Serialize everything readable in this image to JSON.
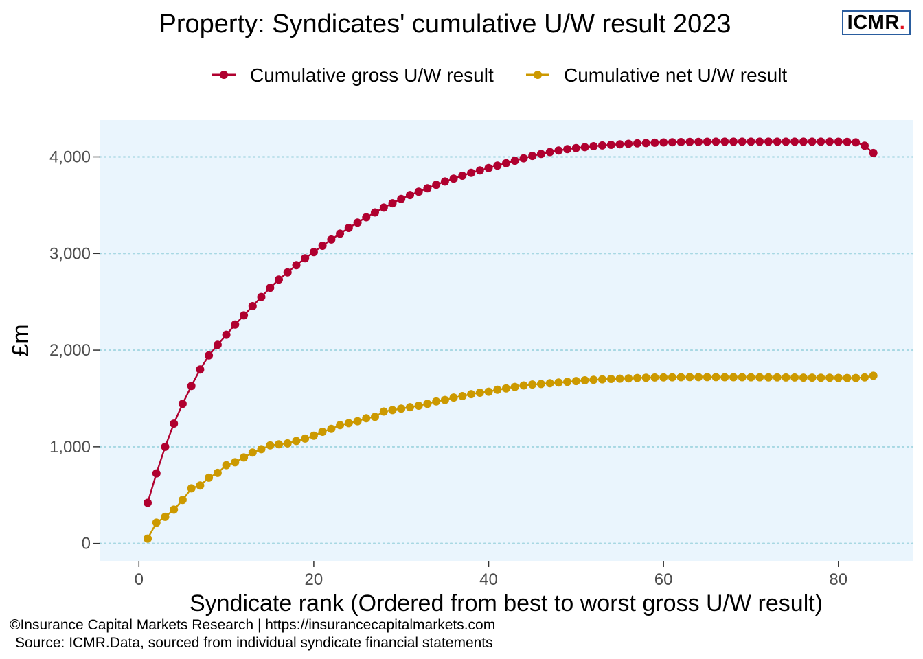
{
  "logo": {
    "text": "ICMR",
    "dot": "."
  },
  "caption": {
    "line1": "©Insurance Capital Markets Research | https://insurancecapitalmarkets.com",
    "line2": "Source: ICMR.Data, sourced from individual syndicate financial statements"
  },
  "colors": {
    "gross": "#b0002f",
    "net": "#cc9900",
    "panel": "#eaf5fd",
    "grid": "#a8d8e3"
  },
  "chart_data": {
    "type": "line",
    "title": "Property: Syndicates' cumulative  U/W result 2023",
    "xlabel": "Syndicate rank (Ordered from best to worst gross U/W result)",
    "ylabel": "£m",
    "xlim": [
      -4.5,
      88.5
    ],
    "ylim": [
      -180,
      4380
    ],
    "xticks": [
      0,
      20,
      40,
      60,
      80
    ],
    "xtick_labels": [
      "0",
      "20",
      "40",
      "60",
      "80"
    ],
    "yticks": [
      0,
      1000,
      2000,
      3000,
      4000
    ],
    "ytick_labels": [
      "0",
      "1,000",
      "2,000",
      "3,000",
      "4,000"
    ],
    "grid": "horizontal dotted",
    "legend_position": "top",
    "series": [
      {
        "name": "Cumulative gross U/W result",
        "color": "#b0002f",
        "x": [
          1,
          2,
          3,
          4,
          5,
          6,
          7,
          8,
          9,
          10,
          11,
          12,
          13,
          14,
          15,
          16,
          17,
          18,
          19,
          20,
          21,
          22,
          23,
          24,
          25,
          26,
          27,
          28,
          29,
          30,
          31,
          32,
          33,
          34,
          35,
          36,
          37,
          38,
          39,
          40,
          41,
          42,
          43,
          44,
          45,
          46,
          47,
          48,
          49,
          50,
          51,
          52,
          53,
          54,
          55,
          56,
          57,
          58,
          59,
          60,
          61,
          62,
          63,
          64,
          65,
          66,
          67,
          68,
          69,
          70,
          71,
          72,
          73,
          74,
          75,
          76,
          77,
          78,
          79,
          80,
          81,
          82,
          83,
          84
        ],
        "values": [
          420,
          725,
          1000,
          1240,
          1445,
          1630,
          1800,
          1945,
          2055,
          2160,
          2265,
          2360,
          2455,
          2550,
          2645,
          2730,
          2805,
          2880,
          2950,
          3015,
          3080,
          3145,
          3205,
          3265,
          3320,
          3375,
          3425,
          3475,
          3520,
          3565,
          3605,
          3640,
          3675,
          3710,
          3745,
          3775,
          3805,
          3835,
          3860,
          3885,
          3910,
          3935,
          3960,
          3985,
          4010,
          4030,
          4050,
          4065,
          4080,
          4090,
          4100,
          4110,
          4118,
          4124,
          4130,
          4135,
          4140,
          4143,
          4146,
          4149,
          4151,
          4153,
          4154,
          4155,
          4156,
          4157,
          4157,
          4157,
          4157,
          4157,
          4157,
          4157,
          4157,
          4157,
          4157,
          4157,
          4157,
          4157,
          4157,
          4156,
          4155,
          4150,
          4115,
          4040
        ]
      },
      {
        "name": "Cumulative net U/W result",
        "color": "#cc9900",
        "x": [
          1,
          2,
          3,
          4,
          5,
          6,
          7,
          8,
          9,
          10,
          11,
          12,
          13,
          14,
          15,
          16,
          17,
          18,
          19,
          20,
          21,
          22,
          23,
          24,
          25,
          26,
          27,
          28,
          29,
          30,
          31,
          32,
          33,
          34,
          35,
          36,
          37,
          38,
          39,
          40,
          41,
          42,
          43,
          44,
          45,
          46,
          47,
          48,
          49,
          50,
          51,
          52,
          53,
          54,
          55,
          56,
          57,
          58,
          59,
          60,
          61,
          62,
          63,
          64,
          65,
          66,
          67,
          68,
          69,
          70,
          71,
          72,
          73,
          74,
          75,
          76,
          77,
          78,
          79,
          80,
          81,
          82,
          83,
          84
        ],
        "values": [
          50,
          215,
          275,
          350,
          450,
          570,
          600,
          680,
          730,
          810,
          840,
          890,
          940,
          975,
          1015,
          1025,
          1035,
          1060,
          1085,
          1115,
          1155,
          1185,
          1225,
          1245,
          1265,
          1295,
          1310,
          1365,
          1380,
          1395,
          1410,
          1425,
          1445,
          1470,
          1485,
          1510,
          1525,
          1545,
          1560,
          1570,
          1590,
          1605,
          1620,
          1635,
          1645,
          1650,
          1658,
          1665,
          1672,
          1680,
          1688,
          1693,
          1698,
          1702,
          1705,
          1708,
          1712,
          1715,
          1717,
          1718,
          1719,
          1720,
          1721,
          1721,
          1721,
          1721,
          1720,
          1720,
          1720,
          1719,
          1719,
          1718,
          1718,
          1717,
          1717,
          1716,
          1716,
          1715,
          1714,
          1713,
          1712,
          1712,
          1718,
          1735
        ]
      }
    ]
  }
}
